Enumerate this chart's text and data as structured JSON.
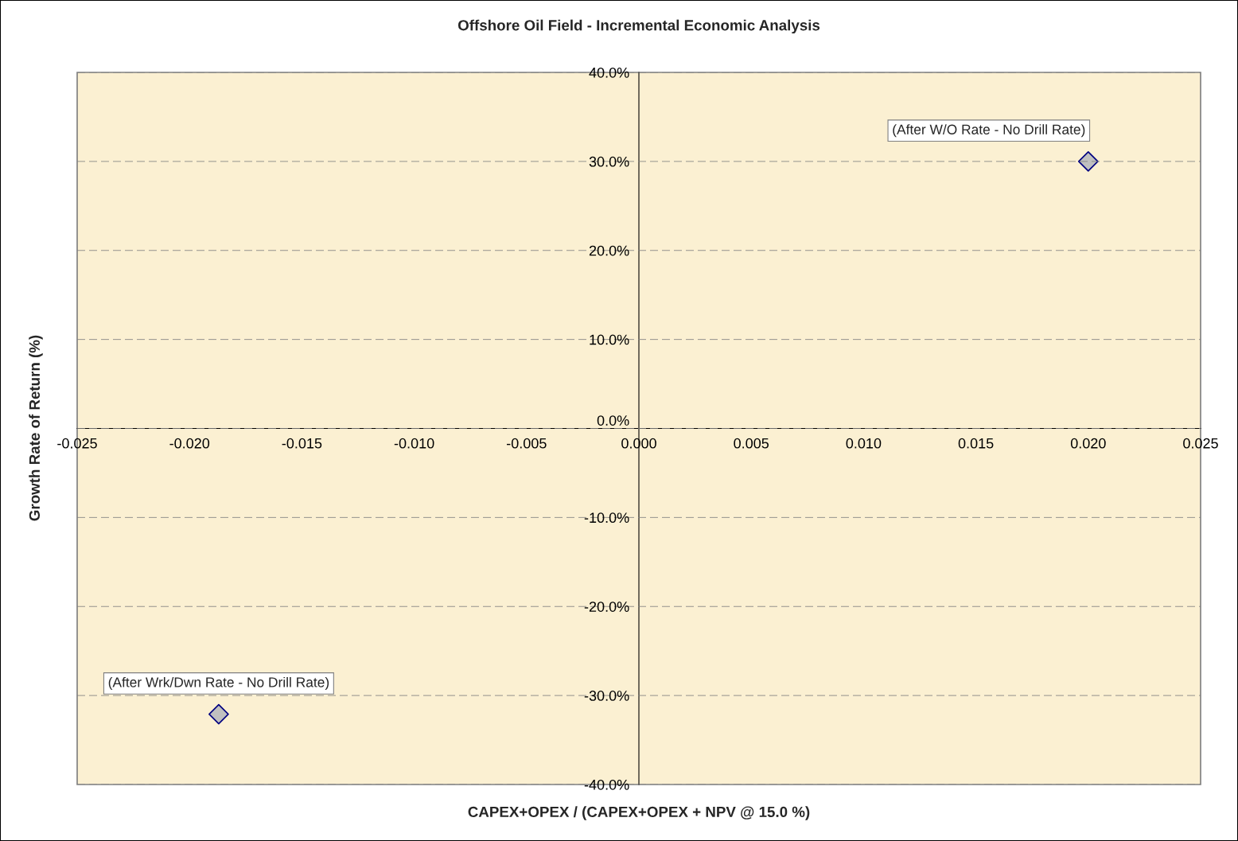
{
  "chart_data": {
    "type": "scatter",
    "title": "Offshore Oil Field - Incremental Economic Analysis",
    "xlabel": "CAPEX+OPEX / (CAPEX+OPEX + NPV @ 15.0 %)",
    "ylabel": "Growth Rate of Return (%)",
    "x": [
      0.02,
      -0.0187
    ],
    "series": [
      {
        "color": "#c0c0c0",
        "values": [
          30.0,
          -32.1
        ]
      }
    ],
    "marker": "diamond",
    "grid": "y",
    "xlim": [
      -0.025,
      0.025
    ],
    "ylim": [
      -40,
      40
    ],
    "xticks": [
      {
        "value": -0.025,
        "label": "-0.025"
      },
      {
        "value": -0.02,
        "label": "-0.020"
      },
      {
        "value": -0.015,
        "label": "-0.015"
      },
      {
        "value": -0.01,
        "label": "-0.010"
      },
      {
        "value": -0.005,
        "label": "-0.005"
      },
      {
        "value": 0,
        "label": "0.000"
      },
      {
        "value": 0.005,
        "label": "0.005"
      },
      {
        "value": 0.01,
        "label": "0.010"
      },
      {
        "value": 0.015,
        "label": "0.015"
      },
      {
        "value": 0.02,
        "label": "0.020"
      },
      {
        "value": 0.025,
        "label": "0.025"
      }
    ],
    "yticks": [
      {
        "value": -40,
        "label": "-40.0%"
      },
      {
        "value": -30,
        "label": "-30.0%"
      },
      {
        "value": -20,
        "label": "-20.0%"
      },
      {
        "value": -10,
        "label": "-10.0%"
      },
      {
        "value": 0,
        "label": "0.0%"
      },
      {
        "value": 10,
        "label": "10.0%"
      },
      {
        "value": 20,
        "label": "20.0%"
      },
      {
        "value": 30,
        "label": "30.0%"
      },
      {
        "value": 40,
        "label": "40.0%"
      }
    ],
    "annotations": [
      {
        "text": "(After W/O Rate - No Drill Rate)",
        "x": 0.02,
        "y": 30.0
      },
      {
        "text": "(After Wrk/Dwn Rate - No Drill Rate)",
        "x": -0.0187,
        "y": -32.1
      }
    ]
  }
}
